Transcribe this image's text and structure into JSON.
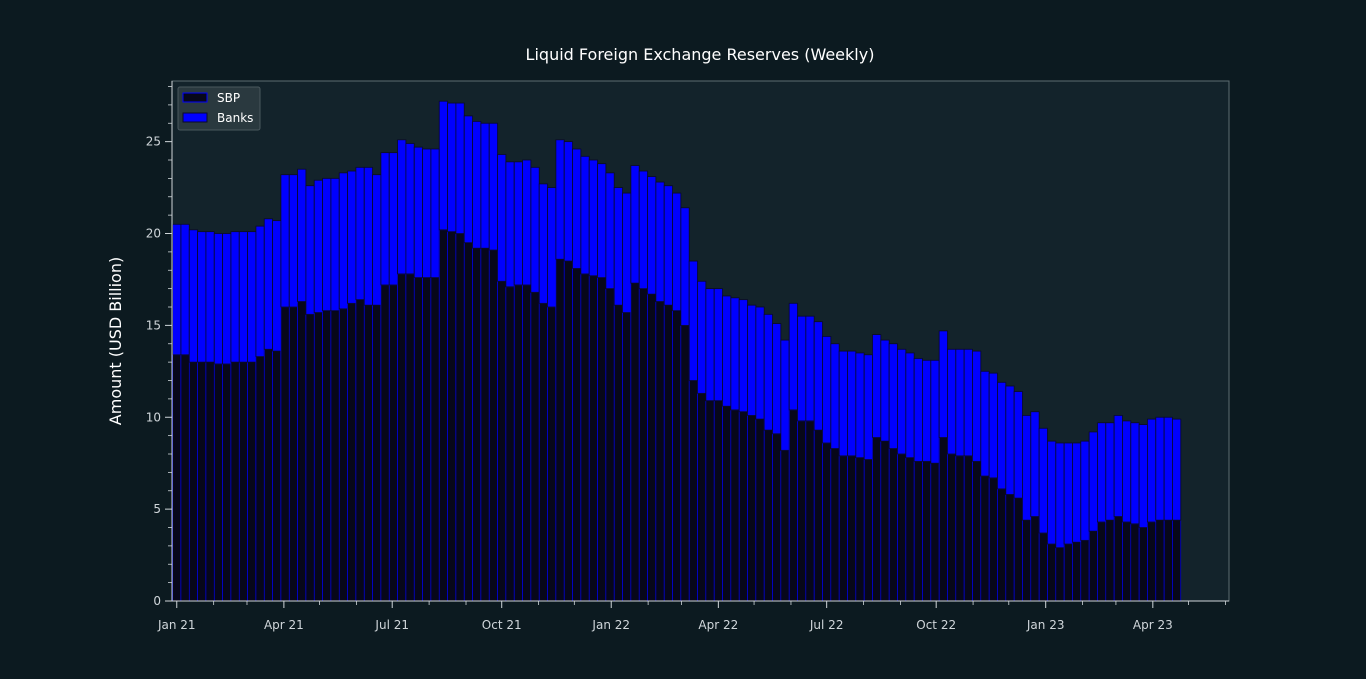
{
  "chart_data": {
    "type": "bar",
    "stacked": true,
    "title": "Liquid Foreign Exchange Reserves (Weekly)",
    "xlabel": "",
    "ylabel": "Amount (USD Billion)",
    "ylim": [
      0,
      28.3
    ],
    "yticks": [
      0,
      5,
      10,
      15,
      20,
      25
    ],
    "xlim": [
      "2020-12-28",
      "2023-06-04"
    ],
    "xticks": [
      {
        "date": "2021-01-01",
        "label": "Jan 21"
      },
      {
        "date": "2021-04-01",
        "label": "Apr 21"
      },
      {
        "date": "2021-07-01",
        "label": "Jul 21"
      },
      {
        "date": "2021-10-01",
        "label": "Oct 21"
      },
      {
        "date": "2022-01-01",
        "label": "Jan 22"
      },
      {
        "date": "2022-04-01",
        "label": "Apr 22"
      },
      {
        "date": "2022-07-01",
        "label": "Jul 22"
      },
      {
        "date": "2022-10-01",
        "label": "Oct 22"
      },
      {
        "date": "2023-01-01",
        "label": "Jan 23"
      },
      {
        "date": "2023-04-01",
        "label": "Apr 23"
      }
    ],
    "legend_position": "top-left",
    "grid": false,
    "colors": {
      "background": "#0c1a20",
      "plot_area": "#13232b",
      "sbp": "#07071a",
      "banks": "#0000ff",
      "bar_edge": "#0a0a2a",
      "axis": "#d0d6da",
      "frame": "#5d6c72"
    },
    "series": [
      {
        "name": "SBP",
        "values": [
          13.4,
          13.4,
          13.0,
          13.0,
          13.0,
          12.9,
          12.9,
          13.0,
          13.0,
          13.0,
          13.3,
          13.7,
          13.6,
          16.0,
          16.0,
          16.3,
          15.6,
          15.7,
          15.8,
          15.8,
          15.9,
          16.2,
          16.4,
          16.1,
          16.1,
          17.2,
          17.2,
          17.8,
          17.8,
          17.6,
          17.6,
          17.6,
          20.2,
          20.1,
          20.0,
          19.5,
          19.2,
          19.2,
          19.1,
          17.4,
          17.1,
          17.2,
          17.2,
          16.8,
          16.2,
          16.0,
          18.6,
          18.5,
          18.1,
          17.8,
          17.7,
          17.6,
          17.0,
          16.1,
          15.7,
          17.3,
          17.0,
          16.7,
          16.3,
          16.1,
          15.8,
          15.0,
          12.0,
          11.3,
          10.9,
          10.9,
          10.6,
          10.4,
          10.3,
          10.1,
          9.9,
          9.3,
          9.1,
          8.2,
          10.4,
          9.8,
          9.8,
          9.3,
          8.6,
          8.3,
          7.9,
          7.9,
          7.8,
          7.7,
          8.9,
          8.7,
          8.3,
          8.0,
          7.8,
          7.6,
          7.6,
          7.5,
          8.9,
          8.0,
          7.9,
          7.9,
          7.6,
          6.8,
          6.7,
          6.1,
          5.8,
          5.6,
          4.4,
          4.6,
          3.7,
          3.1,
          2.9,
          3.1,
          3.2,
          3.3,
          3.8,
          4.3,
          4.4,
          4.6,
          4.3,
          4.2,
          4.0,
          4.3,
          4.4,
          4.4,
          4.4
        ]
      },
      {
        "name": "Banks",
        "values": [
          7.1,
          7.1,
          7.2,
          7.1,
          7.1,
          7.1,
          7.1,
          7.1,
          7.1,
          7.1,
          7.1,
          7.1,
          7.1,
          7.2,
          7.2,
          7.2,
          7.0,
          7.2,
          7.2,
          7.2,
          7.4,
          7.2,
          7.2,
          7.5,
          7.1,
          7.2,
          7.2,
          7.3,
          7.1,
          7.1,
          7.0,
          7.0,
          7.0,
          7.0,
          7.1,
          6.9,
          6.9,
          6.8,
          6.9,
          6.9,
          6.8,
          6.7,
          6.8,
          6.8,
          6.5,
          6.5,
          6.5,
          6.5,
          6.5,
          6.4,
          6.3,
          6.2,
          6.3,
          6.4,
          6.5,
          6.4,
          6.4,
          6.4,
          6.5,
          6.5,
          6.4,
          6.4,
          6.5,
          6.1,
          6.1,
          6.1,
          6.0,
          6.1,
          6.1,
          6.0,
          6.1,
          6.3,
          6.0,
          6.0,
          5.8,
          5.7,
          5.7,
          5.9,
          5.8,
          5.7,
          5.7,
          5.7,
          5.7,
          5.7,
          5.6,
          5.5,
          5.7,
          5.7,
          5.7,
          5.6,
          5.5,
          5.6,
          5.8,
          5.7,
          5.8,
          5.8,
          6.0,
          5.7,
          5.7,
          5.8,
          5.9,
          5.8,
          5.7,
          5.7,
          5.7,
          5.6,
          5.7,
          5.5,
          5.4,
          5.4,
          5.4,
          5.4,
          5.3,
          5.5,
          5.5,
          5.5,
          5.6,
          5.6,
          5.6,
          5.6,
          5.5
        ]
      }
    ]
  }
}
